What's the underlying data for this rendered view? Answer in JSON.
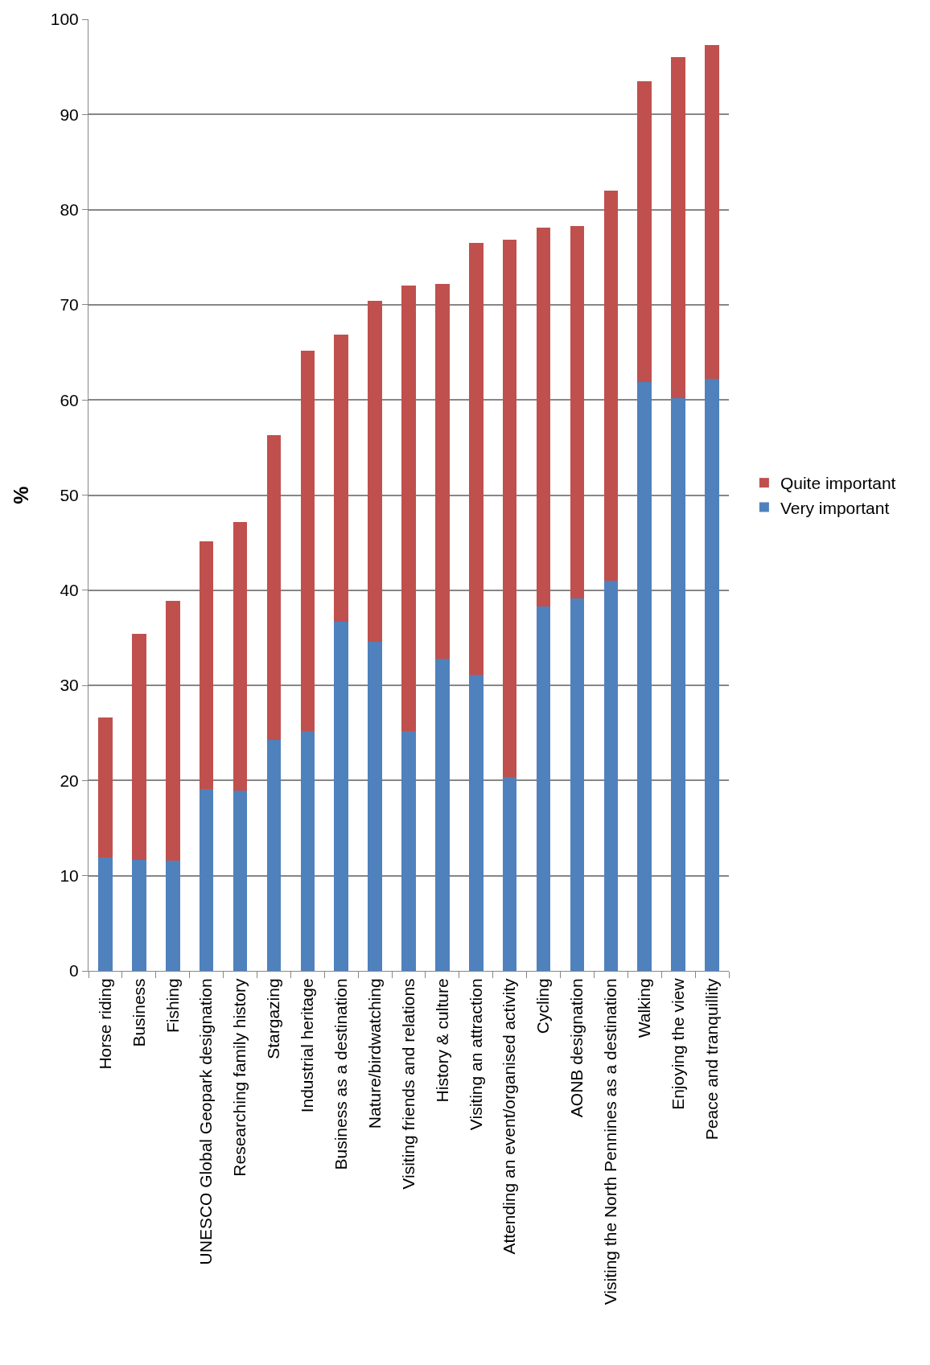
{
  "chart_data": {
    "type": "bar",
    "stacked": true,
    "ylabel": "%",
    "categories": [
      "Horse riding",
      "Business",
      "Fishing",
      "UNESCO Global Geopark designation",
      "Researching family history",
      "Stargazing",
      "Industrial heritage",
      "Business as a destination",
      "Nature/birdwatching",
      "Visiting friends and relations",
      "History & culture",
      "Visiting an attraction",
      "Attending an event/organised activity",
      "Cycling",
      "AONB designation",
      "Visiting the North Pennines as a destination",
      "Walking",
      "Enjoying the view",
      "Peace and tranquillity"
    ],
    "series": [
      {
        "name": "Very important",
        "color": "#4f81bd",
        "values": [
          11.9,
          11.7,
          11.6,
          19.1,
          18.9,
          24.3,
          25.2,
          36.7,
          34.6,
          25.2,
          32.8,
          31.1,
          20.4,
          38.3,
          39.1,
          41.0,
          61.9,
          60.2,
          62.2
        ]
      },
      {
        "name": "Quite important",
        "color": "#c0504d",
        "values": [
          14.7,
          23.7,
          27.3,
          26.0,
          28.3,
          32.0,
          40.0,
          30.2,
          35.8,
          46.8,
          39.4,
          45.4,
          56.4,
          39.8,
          39.2,
          41.0,
          31.6,
          35.8,
          35.1
        ]
      }
    ],
    "ylim": [
      0,
      100
    ],
    "yticks": [
      0,
      10,
      20,
      30,
      40,
      50,
      60,
      70,
      80,
      90,
      100
    ],
    "grid": "y",
    "legend": "right"
  }
}
